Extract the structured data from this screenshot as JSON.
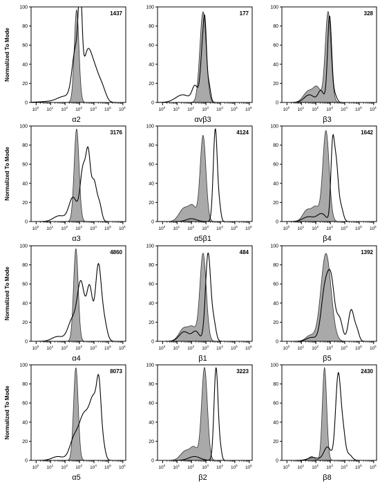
{
  "chart_data": {
    "type": "histogram-grid",
    "ylabel": "Normalized To Mode",
    "ylim": [
      0,
      100
    ],
    "yticks": [
      0,
      20,
      40,
      60,
      80,
      100
    ],
    "xscale": "log",
    "xticks_exp": [
      0,
      1,
      2,
      3,
      4,
      5,
      6
    ],
    "xtick_base": "10",
    "control_fill": "#a9a9a9",
    "sample_stroke": "#000000",
    "panels": [
      {
        "label": "α2",
        "mfi": "1437",
        "control": {
          "center": 2.8,
          "sigma": 0.16,
          "peak": 97
        },
        "sample": [
          [
            -0.1,
            0.5,
            0
          ],
          [
            1.0,
            0.8,
            1
          ],
          [
            2.0,
            0.5,
            6
          ],
          [
            2.75,
            0.25,
            55
          ],
          [
            3.05,
            0.12,
            90
          ],
          [
            3.55,
            0.3,
            50
          ],
          [
            4.1,
            0.3,
            28
          ],
          [
            4.6,
            0.25,
            12
          ]
        ]
      },
      {
        "label": "αvβ3",
        "mfi": "177",
        "control": {
          "center": 2.8,
          "sigma": 0.22,
          "peak": 95
        },
        "sample": [
          [
            -0.1,
            0.5,
            0
          ],
          [
            1.4,
            0.5,
            8
          ],
          [
            2.25,
            0.2,
            16
          ],
          [
            2.8,
            0.16,
            62
          ],
          [
            2.95,
            0.1,
            45
          ],
          [
            3.2,
            0.12,
            18
          ]
        ]
      },
      {
        "label": "β3",
        "mfi": "328",
        "control": {
          "center": 2.85,
          "sigma": 0.2,
          "peak": 95,
          "extra": [
            [
              1.5,
              0.35,
              12
            ],
            [
              2.1,
              0.25,
              14
            ]
          ]
        },
        "sample": [
          [
            -0.1,
            0.5,
            0
          ],
          [
            1.55,
            0.35,
            8
          ],
          [
            2.35,
            0.2,
            12
          ],
          [
            2.95,
            0.14,
            90
          ],
          [
            3.3,
            0.15,
            8
          ]
        ]
      },
      {
        "label": "α3",
        "mfi": "3176",
        "control": {
          "center": 2.8,
          "sigma": 0.17,
          "peak": 97
        },
        "sample": [
          [
            -0.1,
            0.5,
            0
          ],
          [
            1.6,
            0.4,
            6
          ],
          [
            2.55,
            0.28,
            25
          ],
          [
            3.25,
            0.2,
            55
          ],
          [
            3.6,
            0.15,
            60
          ],
          [
            4.0,
            0.2,
            42
          ],
          [
            4.4,
            0.15,
            15
          ]
        ]
      },
      {
        "label": "α5β1",
        "mfi": "4124",
        "control": {
          "center": 2.8,
          "sigma": 0.2,
          "peak": 90,
          "extra": [
            [
              1.5,
              0.35,
              14
            ],
            [
              2.1,
              0.25,
              14
            ]
          ]
        },
        "sample": [
          [
            -0.1,
            0.5,
            0
          ],
          [
            2.0,
            0.35,
            3
          ],
          [
            3.65,
            0.14,
            97
          ],
          [
            3.95,
            0.1,
            12
          ]
        ]
      },
      {
        "label": "β4",
        "mfi": "1642",
        "control": {
          "center": 2.7,
          "sigma": 0.22,
          "peak": 95,
          "extra": [
            [
              1.4,
              0.3,
              12
            ],
            [
              2.0,
              0.25,
              14
            ]
          ]
        },
        "sample": [
          [
            -0.1,
            0.5,
            0
          ],
          [
            1.5,
            0.4,
            5
          ],
          [
            2.4,
            0.3,
            8
          ],
          [
            3.15,
            0.12,
            72
          ],
          [
            3.4,
            0.15,
            60
          ],
          [
            3.75,
            0.15,
            14
          ]
        ]
      },
      {
        "label": "α4",
        "mfi": "4860",
        "control": {
          "center": 2.75,
          "sigma": 0.16,
          "peak": 97
        },
        "sample": [
          [
            -0.1,
            0.5,
            0
          ],
          [
            1.5,
            0.4,
            5
          ],
          [
            2.5,
            0.3,
            22
          ],
          [
            3.1,
            0.25,
            60
          ],
          [
            3.7,
            0.2,
            55
          ],
          [
            4.3,
            0.2,
            78
          ],
          [
            4.7,
            0.2,
            20
          ]
        ]
      },
      {
        "label": "β1",
        "mfi": "484",
        "control": {
          "center": 2.8,
          "sigma": 0.22,
          "peak": 92,
          "extra": [
            [
              1.5,
              0.35,
              14
            ],
            [
              2.1,
              0.25,
              12
            ]
          ]
        },
        "sample": [
          [
            -0.1,
            0.5,
            0
          ],
          [
            1.5,
            0.35,
            10
          ],
          [
            2.3,
            0.25,
            10
          ],
          [
            3.15,
            0.18,
            92
          ],
          [
            3.55,
            0.15,
            18
          ]
        ]
      },
      {
        "label": "β5",
        "mfi": "1392",
        "control": {
          "center": 2.7,
          "sigma": 0.35,
          "peak": 92,
          "extra": [
            [
              1.6,
              0.3,
              6
            ]
          ]
        },
        "sample": [
          [
            -0.1,
            0.5,
            0
          ],
          [
            1.7,
            0.35,
            4
          ],
          [
            2.6,
            0.25,
            48
          ],
          [
            3.05,
            0.25,
            62
          ],
          [
            3.65,
            0.2,
            22
          ],
          [
            4.45,
            0.2,
            33
          ],
          [
            4.85,
            0.15,
            10
          ]
        ]
      },
      {
        "label": "α5",
        "mfi": "8073",
        "control": {
          "center": 2.75,
          "sigma": 0.16,
          "peak": 97
        },
        "sample": [
          [
            -0.1,
            0.5,
            0
          ],
          [
            1.5,
            0.4,
            4
          ],
          [
            2.6,
            0.3,
            20
          ],
          [
            3.3,
            0.35,
            45
          ],
          [
            4.0,
            0.3,
            60
          ],
          [
            4.35,
            0.15,
            55
          ],
          [
            4.65,
            0.15,
            12
          ]
        ]
      },
      {
        "label": "β2",
        "mfi": "3223",
        "control": {
          "center": 2.9,
          "sigma": 0.2,
          "peak": 97,
          "extra": [
            [
              1.6,
              0.35,
              10
            ],
            [
              2.2,
              0.25,
              12
            ]
          ]
        },
        "sample": [
          [
            -0.1,
            0.5,
            0
          ],
          [
            2.2,
            0.4,
            4
          ],
          [
            3.7,
            0.14,
            97
          ],
          [
            4.0,
            0.1,
            10
          ]
        ]
      },
      {
        "label": "β8",
        "mfi": "2430",
        "control": {
          "center": 2.6,
          "sigma": 0.15,
          "peak": 97,
          "extra": [
            [
              1.7,
              0.2,
              4
            ]
          ]
        },
        "sample": [
          [
            -0.1,
            0.5,
            0
          ],
          [
            1.8,
            0.35,
            3
          ],
          [
            2.8,
            0.25,
            14
          ],
          [
            3.55,
            0.18,
            90
          ],
          [
            3.9,
            0.15,
            25
          ],
          [
            4.3,
            0.2,
            6
          ]
        ]
      }
    ]
  }
}
